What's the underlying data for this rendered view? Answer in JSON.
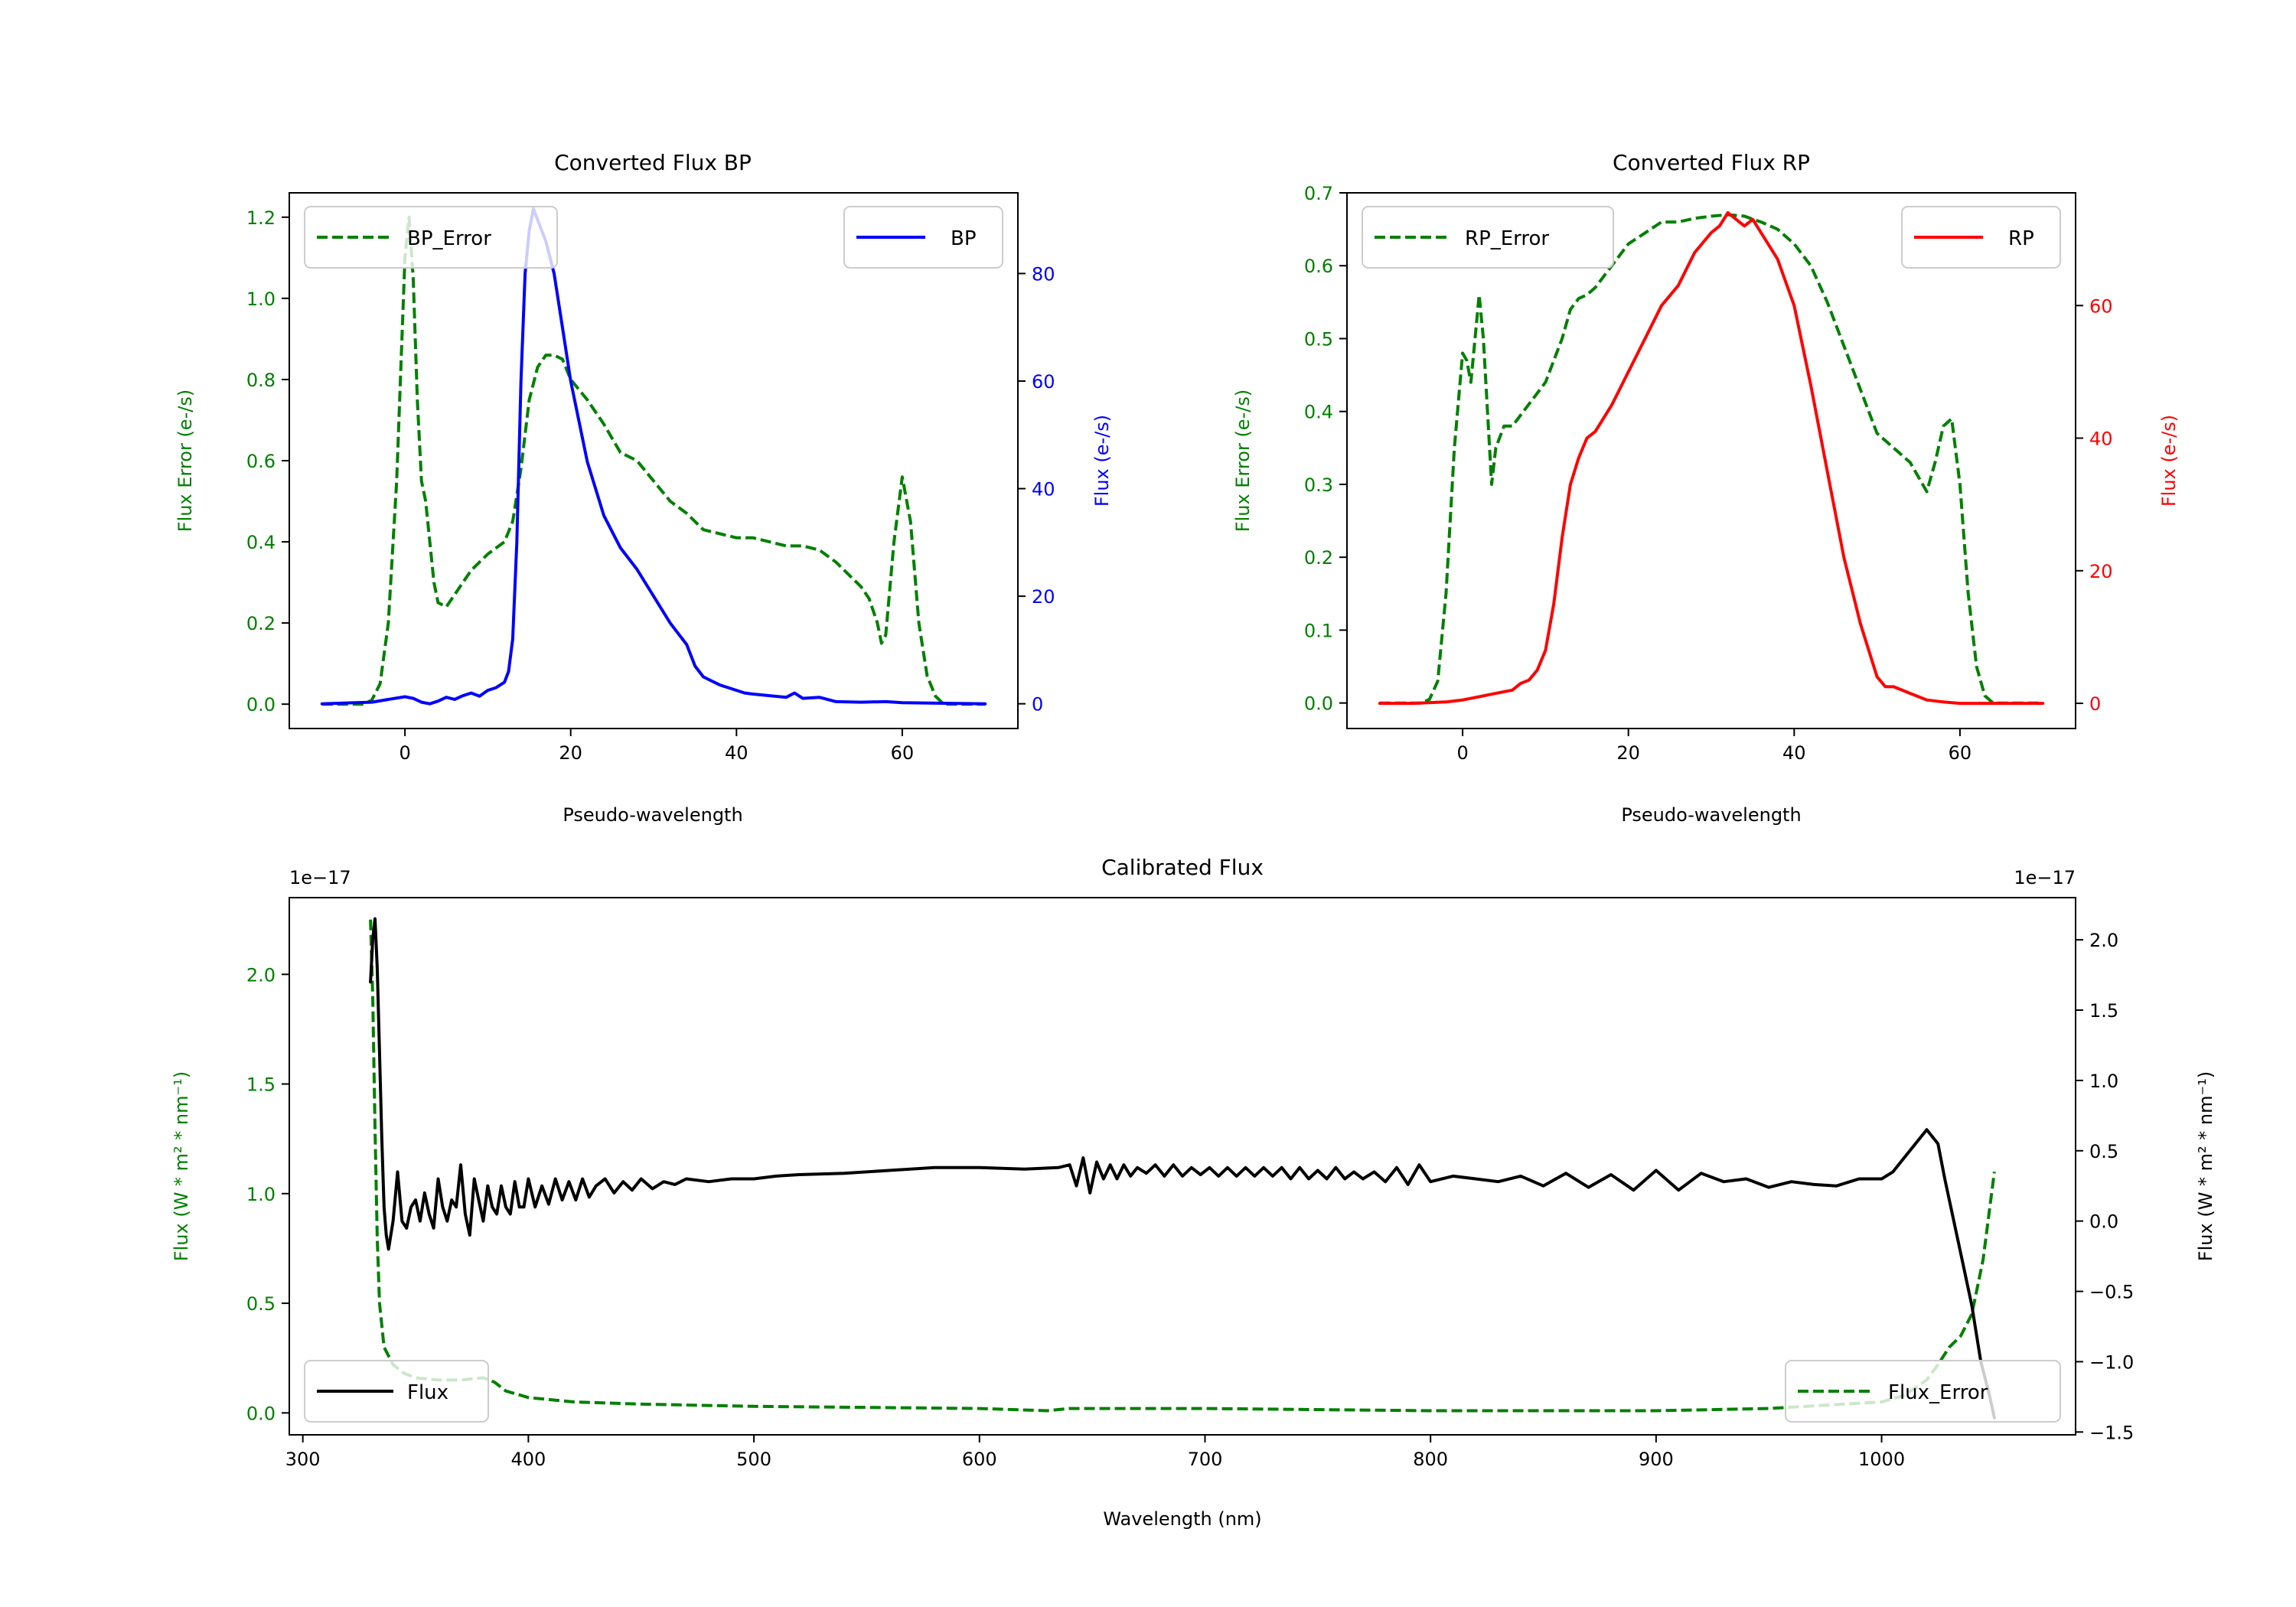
{
  "colors": {
    "green": "#008000",
    "blue": "#0000ff",
    "red": "#ff0000",
    "black": "#000000"
  },
  "chart_data": [
    {
      "id": "bp",
      "type": "line",
      "title": "Converted Flux BP",
      "xlabel": "Pseudo-wavelength",
      "ylabel_left": "Flux Error (e-/s)",
      "ylabel_right": "Flux (e-/s)",
      "xlim": [
        -13.95,
        73.95
      ],
      "ylim_left": [
        -0.06,
        1.26
      ],
      "ylim_right": [
        -4.6,
        95.0
      ],
      "xticks": [
        0,
        20,
        40,
        60
      ],
      "xtick_labels": [
        "0",
        "20",
        "40",
        "60"
      ],
      "yticks_left": [
        0.0,
        0.2,
        0.4,
        0.6,
        0.8,
        1.0,
        1.2
      ],
      "yticks_left_labels": [
        "0.0",
        "0.2",
        "0.4",
        "0.6",
        "0.8",
        "1.0",
        "1.2"
      ],
      "yticks_right": [
        0,
        20,
        40,
        60,
        80
      ],
      "yticks_right_labels": [
        "0",
        "20",
        "40",
        "60",
        "80"
      ],
      "legend": [
        {
          "name": "BP_Error",
          "position": "upper left",
          "style": "dashed",
          "color": "#008000"
        },
        {
          "name": "BP",
          "position": "upper right",
          "style": "solid",
          "color": "#0000ff"
        }
      ],
      "series": [
        {
          "name": "BP_Error",
          "axis": "left",
          "style": "dashed",
          "color": "#008000",
          "x": [
            -10,
            -8,
            -6,
            -5,
            -4,
            -3,
            -2,
            -1,
            0,
            0.5,
            1,
            1.5,
            2,
            2.5,
            3,
            3.5,
            4,
            5,
            6,
            8,
            10,
            12,
            13,
            14,
            15,
            16,
            17,
            18,
            19,
            20,
            22,
            24,
            26,
            28,
            30,
            32,
            34,
            36,
            38,
            40,
            42,
            44,
            46,
            48,
            50,
            52,
            54,
            55,
            56,
            57,
            57.5,
            58,
            59,
            60,
            61,
            62,
            63,
            64,
            65,
            66,
            68,
            70
          ],
          "y": [
            0.0,
            0.0,
            0.0,
            0.0,
            0.01,
            0.05,
            0.2,
            0.55,
            1.1,
            1.2,
            1.05,
            0.75,
            0.55,
            0.5,
            0.4,
            0.3,
            0.25,
            0.24,
            0.27,
            0.33,
            0.37,
            0.4,
            0.45,
            0.58,
            0.75,
            0.83,
            0.86,
            0.86,
            0.85,
            0.8,
            0.75,
            0.69,
            0.62,
            0.6,
            0.55,
            0.5,
            0.47,
            0.43,
            0.42,
            0.41,
            0.41,
            0.4,
            0.39,
            0.39,
            0.38,
            0.35,
            0.31,
            0.29,
            0.26,
            0.2,
            0.15,
            0.17,
            0.4,
            0.56,
            0.45,
            0.2,
            0.07,
            0.02,
            0.0,
            0.0,
            0.0,
            0.0
          ]
        },
        {
          "name": "BP",
          "axis": "right",
          "style": "solid",
          "color": "#0000ff",
          "x": [
            -10,
            -8,
            -6,
            -4,
            -2,
            0,
            1,
            2,
            3,
            4,
            5,
            6,
            7,
            8,
            9,
            10,
            11,
            12,
            12.5,
            13,
            13.5,
            14,
            14.5,
            15,
            15.5,
            16,
            16.5,
            17,
            18,
            19,
            20,
            22,
            24,
            26,
            28,
            30,
            32,
            34,
            35,
            36,
            38,
            40,
            41,
            42,
            44,
            46,
            47,
            48,
            50,
            52,
            55,
            58,
            60,
            65,
            70
          ],
          "y": [
            0.0,
            0.1,
            0.2,
            0.3,
            0.8,
            1.3,
            1.0,
            0.3,
            0.0,
            0.5,
            1.2,
            0.8,
            1.5,
            2.0,
            1.4,
            2.5,
            3.0,
            4.0,
            6.0,
            12.0,
            30.0,
            60.0,
            80.0,
            88.0,
            92.0,
            90.0,
            88.0,
            86.0,
            80.0,
            70.0,
            60.0,
            45.0,
            35.0,
            29.0,
            25.0,
            20.0,
            15.0,
            11.0,
            7.0,
            5.0,
            3.5,
            2.5,
            2.0,
            1.8,
            1.5,
            1.2,
            2.0,
            1.0,
            1.2,
            0.4,
            0.3,
            0.4,
            0.2,
            0.1,
            0.0
          ]
        }
      ]
    },
    {
      "id": "rp",
      "type": "line",
      "title": "Converted Flux RP",
      "xlabel": "Pseudo-wavelength",
      "ylabel_left": "Flux Error (e-/s)",
      "ylabel_right": "Flux (e-/s)",
      "xlim": [
        -13.95,
        73.95
      ],
      "ylim_left": [
        -0.035,
        0.7
      ],
      "ylim_right": [
        -3.8,
        77.0
      ],
      "xticks": [
        0,
        20,
        40,
        60
      ],
      "xtick_labels": [
        "0",
        "20",
        "40",
        "60"
      ],
      "yticks_left": [
        0.0,
        0.1,
        0.2,
        0.3,
        0.4,
        0.5,
        0.6,
        0.7
      ],
      "yticks_left_labels": [
        "0.0",
        "0.1",
        "0.2",
        "0.3",
        "0.4",
        "0.5",
        "0.6",
        "0.7"
      ],
      "yticks_right": [
        0,
        20,
        40,
        60
      ],
      "yticks_right_labels": [
        "0",
        "20",
        "40",
        "60"
      ],
      "legend": [
        {
          "name": "RP_Error",
          "position": "upper left",
          "style": "dashed",
          "color": "#008000"
        },
        {
          "name": "RP",
          "position": "upper right",
          "style": "solid",
          "color": "#ff0000"
        }
      ],
      "series": [
        {
          "name": "RP_Error",
          "axis": "left",
          "style": "dashed",
          "color": "#008000",
          "x": [
            -10,
            -8,
            -6,
            -5,
            -4,
            -3,
            -2,
            -1,
            0,
            0.5,
            1,
            1.5,
            2,
            2.5,
            3,
            3.5,
            4,
            5,
            6,
            8,
            10,
            12,
            13,
            14,
            15,
            16,
            18,
            20,
            22,
            24,
            26,
            28,
            30,
            32,
            34,
            36,
            38,
            40,
            42,
            44,
            46,
            48,
            50,
            52,
            54,
            56,
            57,
            58,
            59,
            60,
            61,
            62,
            63,
            64,
            65,
            66,
            68,
            70
          ],
          "y": [
            0.0,
            0.0,
            0.0,
            0.0,
            0.005,
            0.03,
            0.15,
            0.35,
            0.48,
            0.47,
            0.44,
            0.5,
            0.56,
            0.5,
            0.4,
            0.3,
            0.35,
            0.38,
            0.38,
            0.41,
            0.44,
            0.5,
            0.54,
            0.555,
            0.56,
            0.57,
            0.6,
            0.63,
            0.645,
            0.66,
            0.66,
            0.665,
            0.668,
            0.67,
            0.668,
            0.66,
            0.65,
            0.63,
            0.6,
            0.55,
            0.49,
            0.43,
            0.37,
            0.35,
            0.33,
            0.29,
            0.33,
            0.38,
            0.39,
            0.3,
            0.15,
            0.05,
            0.01,
            0.0,
            0.0,
            0.0,
            0.0,
            0.0
          ]
        },
        {
          "name": "RP",
          "axis": "right",
          "style": "solid",
          "color": "#ff0000",
          "x": [
            -10,
            -6,
            -2,
            0,
            2,
            4,
            6,
            7,
            8,
            9,
            10,
            11,
            12,
            13,
            14,
            15,
            16,
            17,
            18,
            20,
            22,
            24,
            26,
            28,
            30,
            31,
            32,
            33,
            34,
            35,
            36,
            38,
            40,
            42,
            44,
            46,
            48,
            50,
            51,
            52,
            54,
            56,
            58,
            60,
            65,
            70
          ],
          "y": [
            0.0,
            0.0,
            0.2,
            0.5,
            1.0,
            1.5,
            2.0,
            3.0,
            3.5,
            5.0,
            8.0,
            15.0,
            25.0,
            33.0,
            37.0,
            40.0,
            41.0,
            43.0,
            45.0,
            50.0,
            55.0,
            60.0,
            63.0,
            68.0,
            71.0,
            72.0,
            74.0,
            73.0,
            72.0,
            73.0,
            71.0,
            67.0,
            60.0,
            48.0,
            35.0,
            22.0,
            12.0,
            4.0,
            2.5,
            2.5,
            1.5,
            0.5,
            0.2,
            0.0,
            0.0,
            0.0
          ]
        }
      ]
    },
    {
      "id": "calibrated",
      "type": "line",
      "title": "Calibrated Flux",
      "xlabel": "Wavelength (nm)",
      "ylabel_left": "Flux (W * m² * nm⁻¹)",
      "ylabel_right": "Flux (W * m² * nm⁻¹)",
      "offset_label_left": "1e−17",
      "offset_label_right": "1e−17",
      "xlim": [
        294,
        1086
      ],
      "ylim_left": [
        -0.1,
        2.35
      ],
      "ylim_right": [
        -1.52,
        2.3
      ],
      "xticks": [
        300,
        400,
        500,
        600,
        700,
        800,
        900,
        1000
      ],
      "xtick_labels": [
        "300",
        "400",
        "500",
        "600",
        "700",
        "800",
        "900",
        "1000"
      ],
      "yticks_left": [
        0.0,
        0.5,
        1.0,
        1.5,
        2.0
      ],
      "yticks_left_labels": [
        "0.0",
        "0.5",
        "1.0",
        "1.5",
        "2.0"
      ],
      "yticks_right": [
        -1.5,
        -1.0,
        -0.5,
        0.0,
        0.5,
        1.0,
        1.5,
        2.0
      ],
      "yticks_right_labels": [
        "−1.5",
        "−1.0",
        "−0.5",
        "0.0",
        "0.5",
        "1.0",
        "1.5",
        "2.0"
      ],
      "legend": [
        {
          "name": "Flux",
          "position": "lower left",
          "style": "solid",
          "color": "#000000"
        },
        {
          "name": "Flux_Error",
          "position": "lower right",
          "style": "dashed",
          "color": "#008000"
        }
      ],
      "series": [
        {
          "name": "Flux_Error",
          "axis": "left",
          "style": "dashed",
          "color": "#008000",
          "x": [
            330,
            331,
            332,
            333,
            334,
            336,
            340,
            345,
            350,
            360,
            370,
            380,
            385,
            390,
            400,
            420,
            450,
            500,
            550,
            600,
            630,
            640,
            700,
            800,
            900,
            950,
            1000,
            1010,
            1020,
            1025,
            1030,
            1035,
            1040,
            1045,
            1050
          ],
          "y": [
            2.25,
            1.9,
            1.3,
            0.8,
            0.5,
            0.3,
            0.22,
            0.18,
            0.16,
            0.15,
            0.15,
            0.16,
            0.14,
            0.1,
            0.07,
            0.05,
            0.04,
            0.03,
            0.025,
            0.02,
            0.01,
            0.02,
            0.02,
            0.01,
            0.01,
            0.02,
            0.05,
            0.08,
            0.15,
            0.22,
            0.3,
            0.35,
            0.45,
            0.7,
            1.1
          ]
        },
        {
          "name": "Flux",
          "axis": "right",
          "style": "solid",
          "color": "#000000",
          "x": [
            330,
            331,
            332,
            333,
            334,
            335,
            336,
            337,
            338,
            340,
            342,
            344,
            346,
            348,
            350,
            352,
            354,
            356,
            358,
            360,
            362,
            364,
            366,
            368,
            370,
            372,
            374,
            376,
            378,
            380,
            382,
            384,
            386,
            388,
            390,
            392,
            394,
            396,
            398,
            400,
            403,
            406,
            409,
            412,
            415,
            418,
            421,
            424,
            427,
            430,
            434,
            438,
            442,
            446,
            450,
            455,
            460,
            465,
            470,
            480,
            490,
            500,
            510,
            520,
            540,
            560,
            580,
            600,
            620,
            635,
            640,
            643,
            646,
            649,
            652,
            655,
            658,
            661,
            664,
            667,
            670,
            674,
            678,
            682,
            686,
            690,
            694,
            698,
            702,
            706,
            710,
            714,
            718,
            722,
            726,
            730,
            734,
            738,
            742,
            746,
            750,
            754,
            758,
            762,
            766,
            770,
            775,
            780,
            785,
            790,
            795,
            800,
            810,
            820,
            830,
            840,
            850,
            860,
            870,
            880,
            890,
            900,
            910,
            920,
            930,
            940,
            950,
            960,
            970,
            980,
            990,
            1000,
            1005,
            1010,
            1015,
            1020,
            1025,
            1028,
            1032,
            1036,
            1040,
            1044,
            1048,
            1050
          ],
          "y": [
            1.7,
            2.0,
            2.15,
            1.8,
            1.2,
            0.6,
            0.1,
            -0.1,
            -0.2,
            0.0,
            0.35,
            0.0,
            -0.05,
            0.1,
            0.15,
            0.0,
            0.2,
            0.05,
            -0.05,
            0.3,
            0.1,
            0.0,
            0.15,
            0.1,
            0.4,
            0.05,
            -0.1,
            0.3,
            0.15,
            0.0,
            0.25,
            0.1,
            0.05,
            0.25,
            0.1,
            0.05,
            0.28,
            0.1,
            0.1,
            0.3,
            0.1,
            0.25,
            0.12,
            0.3,
            0.15,
            0.28,
            0.15,
            0.3,
            0.17,
            0.25,
            0.3,
            0.2,
            0.28,
            0.22,
            0.3,
            0.23,
            0.28,
            0.26,
            0.3,
            0.28,
            0.3,
            0.3,
            0.32,
            0.33,
            0.34,
            0.36,
            0.38,
            0.38,
            0.37,
            0.38,
            0.4,
            0.25,
            0.45,
            0.2,
            0.42,
            0.3,
            0.4,
            0.3,
            0.4,
            0.32,
            0.38,
            0.34,
            0.4,
            0.32,
            0.4,
            0.32,
            0.38,
            0.33,
            0.38,
            0.32,
            0.38,
            0.32,
            0.38,
            0.32,
            0.38,
            0.32,
            0.38,
            0.3,
            0.38,
            0.3,
            0.36,
            0.3,
            0.38,
            0.3,
            0.35,
            0.3,
            0.35,
            0.28,
            0.38,
            0.26,
            0.4,
            0.28,
            0.32,
            0.3,
            0.28,
            0.32,
            0.25,
            0.34,
            0.24,
            0.33,
            0.22,
            0.36,
            0.22,
            0.34,
            0.28,
            0.3,
            0.24,
            0.28,
            0.26,
            0.25,
            0.3,
            0.3,
            0.35,
            0.45,
            0.55,
            0.65,
            0.55,
            0.3,
            0.0,
            -0.3,
            -0.6,
            -1.0,
            -1.25,
            -1.4
          ]
        }
      ]
    }
  ]
}
